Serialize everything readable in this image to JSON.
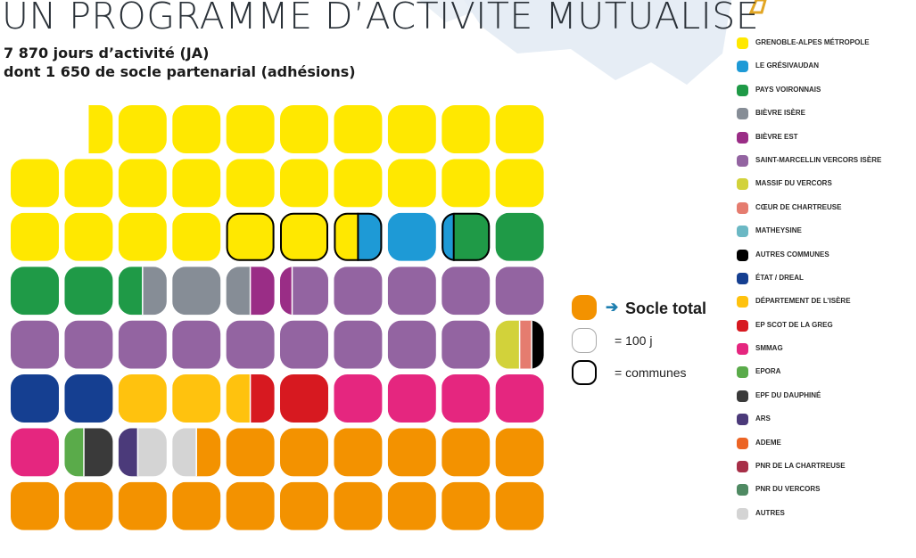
{
  "title": "UN PROGRAMME D’ACTIVITÉ MUTUALISÉ",
  "subtitle_line1": "7 870 jours d’activité (JA)",
  "subtitle_line2": "dont 1 650 de socle partenarial (adhésions)",
  "key": {
    "socle_arrow": "➔",
    "socle_label": "Socle total",
    "unit_label": "= 100 j",
    "communes_label": "= communes"
  },
  "legend": [
    {
      "label": "GRENOBLE-ALPES MÉTROPOLE",
      "color": "#ffe800"
    },
    {
      "label": "LE GRÉSIVAUDAN",
      "color": "#1e9ad6"
    },
    {
      "label": "PAYS VOIRONNAIS",
      "color": "#1f9a47"
    },
    {
      "label": "BIÈVRE ISÈRE",
      "color": "#868d96"
    },
    {
      "label": "BIÈVRE EST",
      "color": "#9a2d86"
    },
    {
      "label": "SAINT-MARCELLIN VERCORS ISÈRE",
      "color": "#9364a1"
    },
    {
      "label": "MASSIF DU VERCORS",
      "color": "#d2d23a"
    },
    {
      "label": "CŒUR DE CHARTREUSE",
      "color": "#e57c6f"
    },
    {
      "label": "MATHEYSINE",
      "color": "#6bb8c4"
    },
    {
      "label": "AUTRES COMMUNES",
      "color": "#000000"
    },
    {
      "label": "ÉTAT / DREAL",
      "color": "#153f91"
    },
    {
      "label": "DÉPARTEMENT DE L’ISÈRE",
      "color": "#ffc20e"
    },
    {
      "label": "EP SCOT DE LA GREG",
      "color": "#d71920"
    },
    {
      "label": "SMMAG",
      "color": "#e5267f"
    },
    {
      "label": "EPORA",
      "color": "#5aab4a"
    },
    {
      "label": "EPF DU DAUPHINÉ",
      "color": "#3a3a3a"
    },
    {
      "label": "ARS",
      "color": "#4b3a7a"
    },
    {
      "label": "ADEME",
      "color": "#ec6424"
    },
    {
      "label": "PNR DE LA CHARTREUSE",
      "color": "#a72f48"
    },
    {
      "label": "PNR DU VERCORS",
      "color": "#4f8a63"
    },
    {
      "label": "AUTRES",
      "color": "#d4d4d4"
    }
  ],
  "chart_data": {
    "type": "waffle",
    "title": "UN PROGRAMME D’ACTIVITÉ MUTUALISÉ",
    "total_days": 7870,
    "socle_days": 1650,
    "unit_days": 100,
    "socle_color": "#f39200",
    "colors": {
      "Y": "#ffe800",
      "BL": "#1e9ad6",
      "G": "#1f9a47",
      "GR": "#868d96",
      "PM": "#9a2d86",
      "PU": "#9364a1",
      "LY": "#d2d23a",
      "SA": "#e57c6f",
      "K": "#000000",
      "NV": "#153f91",
      "GO": "#ffc20e",
      "RD": "#d71920",
      "PK": "#e5267f",
      "LG": "#5aab4a",
      "DG": "#3a3a3a",
      "DP": "#4b3a7a",
      "LGR": "#d4d4d4",
      "OR": "#f39200"
    },
    "rows": [
      [
        null,
        {
          "s": [
            [
              "Y",
              0.5
            ]
          ]
        },
        {
          "s": [
            [
              "Y",
              1
            ]
          ]
        },
        {
          "s": [
            [
              "Y",
              1
            ]
          ]
        },
        {
          "s": [
            [
              "Y",
              1
            ]
          ]
        },
        {
          "s": [
            [
              "Y",
              1
            ]
          ]
        },
        {
          "s": [
            [
              "Y",
              1
            ]
          ]
        },
        {
          "s": [
            [
              "Y",
              1
            ]
          ]
        },
        {
          "s": [
            [
              "Y",
              1
            ]
          ]
        },
        {
          "s": [
            [
              "Y",
              1
            ]
          ]
        }
      ],
      [
        {
          "s": [
            [
              "Y",
              1
            ]
          ]
        },
        {
          "s": [
            [
              "Y",
              1
            ]
          ]
        },
        {
          "s": [
            [
              "Y",
              1
            ]
          ]
        },
        {
          "s": [
            [
              "Y",
              1
            ]
          ]
        },
        {
          "s": [
            [
              "Y",
              1
            ]
          ]
        },
        {
          "s": [
            [
              "Y",
              1
            ]
          ]
        },
        {
          "s": [
            [
              "Y",
              1
            ]
          ]
        },
        {
          "s": [
            [
              "Y",
              1
            ]
          ]
        },
        {
          "s": [
            [
              "Y",
              1
            ]
          ]
        },
        {
          "s": [
            [
              "Y",
              1
            ]
          ]
        }
      ],
      [
        {
          "s": [
            [
              "Y",
              1
            ]
          ]
        },
        {
          "s": [
            [
              "Y",
              1
            ]
          ]
        },
        {
          "s": [
            [
              "Y",
              1
            ]
          ]
        },
        {
          "s": [
            [
              "Y",
              1
            ]
          ]
        },
        {
          "s": [
            [
              "Y",
              1
            ]
          ],
          "c": 1
        },
        {
          "s": [
            [
              "Y",
              1
            ]
          ],
          "c": 1
        },
        {
          "s": [
            [
              "Y",
              0.5
            ],
            [
              "BL",
              0.5
            ]
          ],
          "c": 1
        },
        {
          "s": [
            [
              "BL",
              1
            ]
          ]
        },
        {
          "s": [
            [
              "BL",
              0.25
            ],
            [
              "G",
              0.75
            ]
          ],
          "c": 1
        },
        {
          "s": [
            [
              "G",
              1
            ]
          ]
        }
      ],
      [
        {
          "s": [
            [
              "G",
              1
            ]
          ]
        },
        {
          "s": [
            [
              "G",
              1
            ]
          ]
        },
        {
          "s": [
            [
              "G",
              0.5
            ],
            [
              "GR",
              0.5
            ]
          ]
        },
        {
          "s": [
            [
              "GR",
              1
            ]
          ]
        },
        {
          "s": [
            [
              "GR",
              0.5
            ],
            [
              "PM",
              0.5
            ]
          ]
        },
        {
          "s": [
            [
              "PM",
              0.25
            ],
            [
              "PU",
              0.75
            ]
          ]
        },
        {
          "s": [
            [
              "PU",
              1
            ]
          ]
        },
        {
          "s": [
            [
              "PU",
              1
            ]
          ]
        },
        {
          "s": [
            [
              "PU",
              1
            ]
          ]
        },
        {
          "s": [
            [
              "PU",
              1
            ]
          ]
        }
      ],
      [
        {
          "s": [
            [
              "PU",
              1
            ]
          ]
        },
        {
          "s": [
            [
              "PU",
              1
            ]
          ]
        },
        {
          "s": [
            [
              "PU",
              1
            ]
          ]
        },
        {
          "s": [
            [
              "PU",
              1
            ]
          ]
        },
        {
          "s": [
            [
              "PU",
              1
            ]
          ]
        },
        {
          "s": [
            [
              "PU",
              1
            ]
          ]
        },
        {
          "s": [
            [
              "PU",
              1
            ]
          ]
        },
        {
          "s": [
            [
              "PU",
              1
            ]
          ]
        },
        {
          "s": [
            [
              "PU",
              1
            ]
          ]
        },
        {
          "s": [
            [
              "LY",
              0.5
            ],
            [
              "SA",
              0.25
            ],
            [
              "K",
              0.25
            ]
          ]
        }
      ],
      [
        {
          "s": [
            [
              "NV",
              1
            ]
          ]
        },
        {
          "s": [
            [
              "NV",
              1
            ]
          ]
        },
        {
          "s": [
            [
              "GO",
              1
            ]
          ]
        },
        {
          "s": [
            [
              "GO",
              1
            ]
          ]
        },
        {
          "s": [
            [
              "GO",
              0.5
            ],
            [
              "RD",
              0.5
            ]
          ]
        },
        {
          "s": [
            [
              "RD",
              1
            ]
          ]
        },
        {
          "s": [
            [
              "PK",
              1
            ]
          ]
        },
        {
          "s": [
            [
              "PK",
              1
            ]
          ]
        },
        {
          "s": [
            [
              "PK",
              1
            ]
          ]
        },
        {
          "s": [
            [
              "PK",
              1
            ]
          ]
        }
      ],
      [
        {
          "s": [
            [
              "PK",
              1
            ]
          ]
        },
        {
          "s": [
            [
              "LG",
              0.4
            ],
            [
              "DG",
              0.6
            ]
          ]
        },
        {
          "s": [
            [
              "DP",
              0.4
            ],
            [
              "LGR",
              0.6
            ]
          ]
        },
        {
          "s": [
            [
              "LGR",
              0.5
            ],
            [
              "OR",
              0.5
            ]
          ]
        },
        {
          "s": [
            [
              "OR",
              1
            ]
          ]
        },
        {
          "s": [
            [
              "OR",
              1
            ]
          ]
        },
        {
          "s": [
            [
              "OR",
              1
            ]
          ]
        },
        {
          "s": [
            [
              "OR",
              1
            ]
          ]
        },
        {
          "s": [
            [
              "OR",
              1
            ]
          ]
        },
        {
          "s": [
            [
              "OR",
              1
            ]
          ]
        }
      ],
      [
        {
          "s": [
            [
              "OR",
              1
            ]
          ]
        },
        {
          "s": [
            [
              "OR",
              1
            ]
          ]
        },
        {
          "s": [
            [
              "OR",
              1
            ]
          ]
        },
        {
          "s": [
            [
              "OR",
              1
            ]
          ]
        },
        {
          "s": [
            [
              "OR",
              1
            ]
          ]
        },
        {
          "s": [
            [
              "OR",
              1
            ]
          ]
        },
        {
          "s": [
            [
              "OR",
              1
            ]
          ]
        },
        {
          "s": [
            [
              "OR",
              1
            ]
          ]
        },
        {
          "s": [
            [
              "OR",
              1
            ]
          ]
        },
        {
          "s": [
            [
              "OR",
              1
            ]
          ]
        }
      ]
    ]
  }
}
